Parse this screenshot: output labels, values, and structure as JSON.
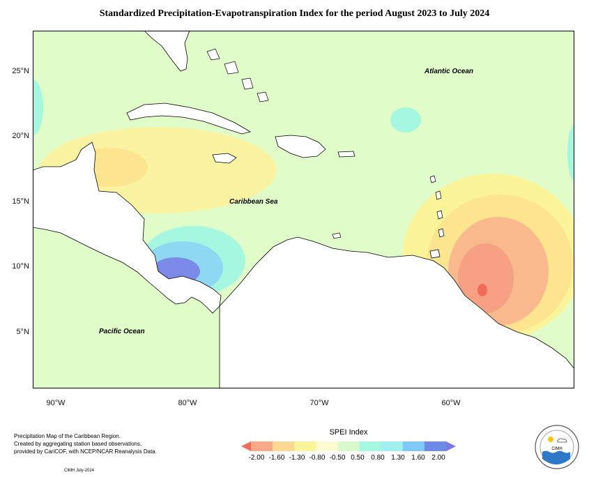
{
  "title": "Standardized Precipitation-Evapotranspiration Index for the period August 2023 to July 2024",
  "axes": {
    "lat_ticks": [
      "25°N",
      "20°N",
      "15°N",
      "10°N",
      "5°N"
    ],
    "lon_ticks": [
      "90°W",
      "80°W",
      "70°W",
      "60°W"
    ]
  },
  "labels": {
    "atlantic": "Atlantic Ocean",
    "caribbean": "Caribbean Sea",
    "pacific": "Pacific Ocean"
  },
  "footer": {
    "line1": "Precipitation Map of the Caribbean Region.",
    "line2": "Created by aggregating station based observations,",
    "line3": "provided by CariCOF, with NCEP/NCAR Reanalysis Data.",
    "credit": "CIMH July-2024"
  },
  "legend": {
    "title": "SPEI Index",
    "ticks": [
      "-2.00",
      "-1.60",
      "-1.30",
      "-0.80",
      "-0.50",
      "0.50",
      "0.80",
      "1.30",
      "1.60",
      "2.00"
    ],
    "colors": [
      "#f26b5b",
      "#f9a98a",
      "#fdd892",
      "#fbf498",
      "#fdfbd0",
      "#d9fbcb",
      "#a6f7e0",
      "#a0f0f0",
      "#7ec9f7",
      "#6d8ae8",
      "#7b78e0"
    ]
  },
  "logo": {
    "text": "CIMH"
  },
  "map_colors": {
    "background": "#e0fcc8",
    "land": "#ffffff",
    "coast": "#000000"
  }
}
